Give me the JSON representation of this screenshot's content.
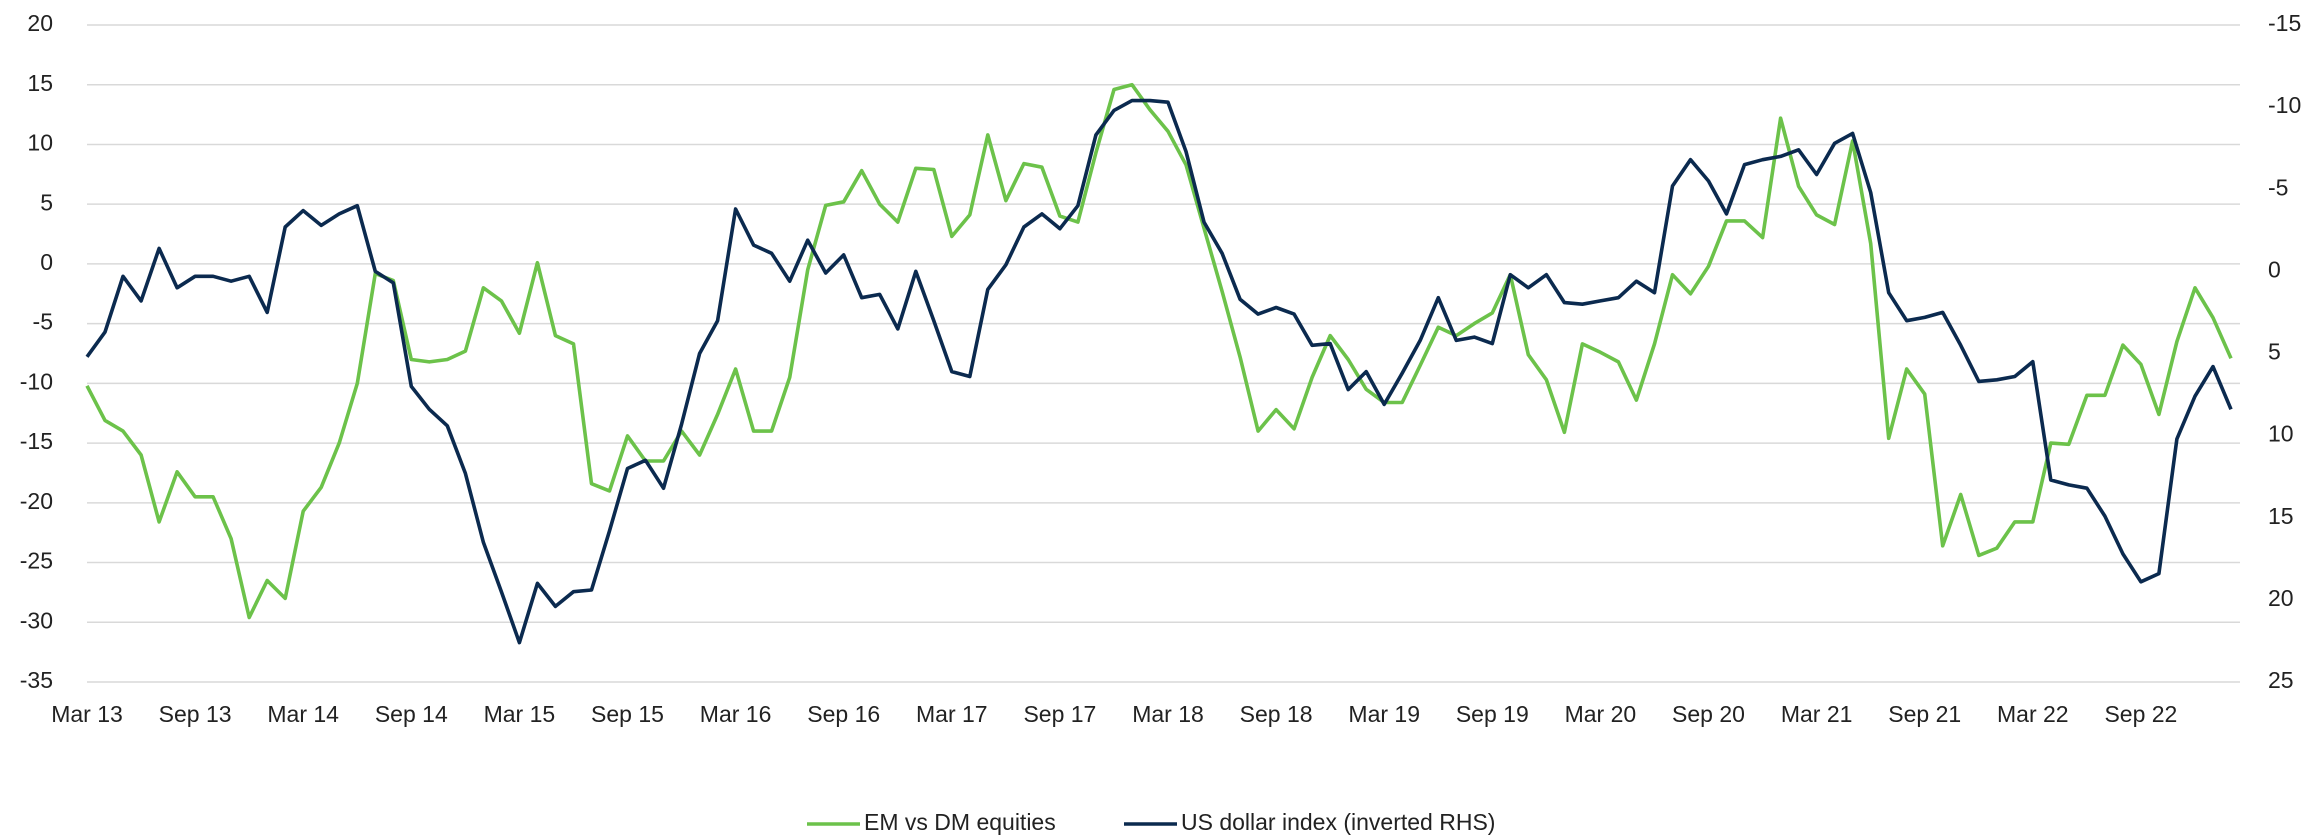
{
  "chart_data": {
    "type": "line",
    "categories": [
      "Mar 13",
      null,
      null,
      null,
      null,
      null,
      "Sep 13",
      null,
      null,
      null,
      null,
      null,
      "Mar 14",
      null,
      null,
      null,
      null,
      null,
      "Sep 14",
      null,
      null,
      null,
      null,
      null,
      "Mar 15",
      null,
      null,
      null,
      null,
      null,
      "Sep 15",
      null,
      null,
      null,
      null,
      null,
      "Mar 16",
      null,
      null,
      null,
      null,
      null,
      "Sep 16",
      null,
      null,
      null,
      null,
      null,
      "Mar 17",
      null,
      null,
      null,
      null,
      null,
      "Sep 17",
      null,
      null,
      null,
      null,
      null,
      "Mar 18",
      null,
      null,
      null,
      null,
      null,
      "Sep 18",
      null,
      null,
      null,
      null,
      null,
      "Mar 19",
      null,
      null,
      null,
      null,
      null,
      "Sep 19",
      null,
      null,
      null,
      null,
      null,
      "Mar 20",
      null,
      null,
      null,
      null,
      null,
      "Sep 20",
      null,
      null,
      null,
      null,
      null,
      "Mar 21",
      null,
      null,
      null,
      null,
      null,
      "Sep 21",
      null,
      null,
      null,
      null,
      null,
      "Mar 22",
      null,
      null,
      null,
      null,
      null,
      "Sep 22",
      null,
      null,
      null,
      null,
      null
    ],
    "series": [
      {
        "name": "EM vs DM equities",
        "color": "#6cc24a",
        "axis": "y",
        "values": [
          -10.2,
          -13.1,
          -14,
          -16,
          -21.6,
          -17.4,
          -19.5,
          -19.5,
          -23,
          -29.6,
          -26.5,
          -28,
          -20.7,
          -18.7,
          -15,
          -10,
          -0.8,
          -1.4,
          -8,
          -8.2,
          -8,
          -7.3,
          -2,
          -3.1,
          -5.8,
          0.1,
          -6,
          -6.7,
          -18.4,
          -19,
          -14.4,
          -16.5,
          -16.5,
          -14,
          -16,
          -12.6,
          -8.8,
          -14,
          -14,
          -9.5,
          -0.5,
          4.9,
          5.2,
          7.8,
          5,
          3.5,
          8,
          7.9,
          2.3,
          4.1,
          10.8,
          5.3,
          8.4,
          8.1,
          4,
          3.5,
          9.3,
          14.6,
          15,
          12.9,
          11.1,
          8.3,
          3,
          -2.3,
          -7.8,
          -14,
          -12.2,
          -13.8,
          -9.5,
          -6,
          -8,
          -10.5,
          -11.6,
          -11.6,
          -8.5,
          -5.3,
          -6,
          -5,
          -4.1,
          -0.9,
          -7.6,
          -9.7,
          -14.1,
          -6.7,
          -7.4,
          -8.2,
          -11.4,
          -6.7,
          -0.9,
          -2.5,
          -0.2,
          3.6,
          3.6,
          2.2,
          12.2,
          6.5,
          4.1,
          3.3,
          10.3,
          1.7,
          -14.6,
          -8.8,
          -10.9,
          -23.6,
          -19.3,
          -24.4,
          -23.8,
          -21.6,
          -21.6,
          -15,
          -15.1,
          -11,
          -11,
          -6.8,
          -8.4,
          -12.6,
          -6.5,
          -2,
          -4.5,
          -7.9
        ]
      },
      {
        "name": "US dollar index (inverted RHS)",
        "color": "#0b2a4f",
        "axis": "y2",
        "values": [
          5.2,
          3.7,
          0.3,
          1.8,
          -1.4,
          1,
          0.3,
          0.3,
          0.6,
          0.3,
          2.5,
          -2.7,
          -3.7,
          -2.8,
          -3.5,
          -4,
          0,
          0.7,
          7,
          8.4,
          9.4,
          12.3,
          16.5,
          19.5,
          22.6,
          19,
          20.4,
          19.5,
          19.4,
          15.8,
          12,
          11.5,
          13.2,
          9.3,
          5,
          3,
          -3.8,
          -1.6,
          -1.1,
          0.6,
          -1.9,
          0.1,
          -1,
          1.6,
          1.4,
          3.5,
          0,
          3,
          6.1,
          6.4,
          1.1,
          -0.4,
          -2.7,
          -3.5,
          -2.6,
          -4,
          -8.3,
          -9.8,
          -10.4,
          -10.4,
          -10.3,
          -7.3,
          -3,
          -1.1,
          1.7,
          2.6,
          2.2,
          2.6,
          4.5,
          4.4,
          7.2,
          6.1,
          8.1,
          6.2,
          4.2,
          1.6,
          4.2,
          4,
          4.4,
          0.2,
          1,
          0.2,
          1.9,
          2,
          1.8,
          1.6,
          0.6,
          1.3,
          -5.2,
          -6.8,
          -5.5,
          -3.5,
          -6.5,
          -6.8,
          -7,
          -7.4,
          -5.9,
          -7.8,
          -8.4,
          -4.8,
          1.3,
          3,
          2.8,
          2.5,
          4.5,
          6.7,
          6.6,
          6.4,
          5.5,
          12.7,
          13,
          13.2,
          14.9,
          17.2,
          18.9,
          18.4,
          10.2,
          7.6,
          5.8,
          8.4
        ]
      }
    ],
    "ylim": [
      -35,
      20
    ],
    "yticks": [
      -35,
      -30,
      -25,
      -20,
      -15,
      -10,
      -5,
      0,
      5,
      10,
      15,
      20
    ],
    "y2lim": [
      -15,
      25
    ],
    "y2ticks": [
      -15,
      -10,
      -5,
      0,
      5,
      10,
      15,
      20,
      25
    ],
    "y2_inverted": true,
    "grid": true,
    "legend": "bottom"
  }
}
